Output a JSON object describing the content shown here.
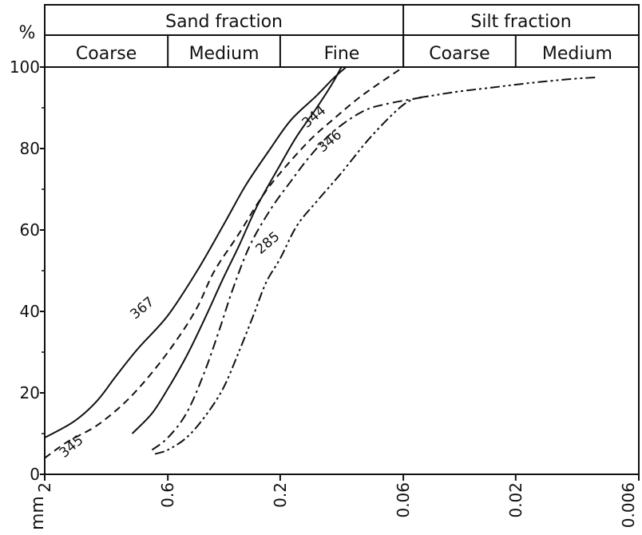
{
  "chart_data": {
    "type": "line",
    "title": "",
    "ylabel": "%",
    "xlabel_unit": "mm",
    "x_scale": "log",
    "xlim": [
      2,
      0.006
    ],
    "ylim": [
      0,
      100
    ],
    "y_ticks": [
      "0",
      "20",
      "40",
      "60",
      "80",
      "100"
    ],
    "y_tick_values": [
      0,
      20,
      40,
      60,
      80,
      100
    ],
    "x_ticks": [
      "2",
      "0.6",
      "0.2",
      "0.06",
      "0.02",
      "0.006"
    ],
    "x_tick_values": [
      2,
      0.6,
      0.2,
      0.06,
      0.02,
      0.006
    ],
    "grid": false,
    "header": {
      "groups": [
        {
          "label": "Sand fraction",
          "from": 2,
          "to": 0.06
        },
        {
          "label": "Silt fraction",
          "from": 0.06,
          "to": 0.006
        }
      ],
      "subgroups": [
        {
          "label": "Coarse",
          "from": 2,
          "to": 0.6
        },
        {
          "label": "Medium",
          "from": 0.6,
          "to": 0.2
        },
        {
          "label": "Fine",
          "from": 0.2,
          "to": 0.06
        },
        {
          "label": "Coarse",
          "from": 0.06,
          "to": 0.02
        },
        {
          "label": "Medium",
          "from": 0.02,
          "to": 0.006
        }
      ]
    },
    "series": [
      {
        "name": "367",
        "style": "solid",
        "label_at": {
          "x": 0.75,
          "y": 40
        },
        "points": [
          [
            2,
            9
          ],
          [
            1.5,
            13
          ],
          [
            1.2,
            18
          ],
          [
            1.0,
            24
          ],
          [
            0.8,
            31
          ],
          [
            0.6,
            39
          ],
          [
            0.45,
            50
          ],
          [
            0.35,
            61
          ],
          [
            0.28,
            71
          ],
          [
            0.22,
            80
          ],
          [
            0.18,
            87
          ],
          [
            0.14,
            93
          ],
          [
            0.12,
            97
          ],
          [
            0.105,
            100
          ]
        ]
      },
      {
        "name": "344",
        "style": "solid",
        "label_at": {
          "x": 0.14,
          "y": 87
        },
        "points": [
          [
            0.85,
            10
          ],
          [
            0.7,
            15
          ],
          [
            0.6,
            21
          ],
          [
            0.5,
            29
          ],
          [
            0.42,
            38
          ],
          [
            0.35,
            48
          ],
          [
            0.3,
            56
          ],
          [
            0.25,
            66
          ],
          [
            0.2,
            76
          ],
          [
            0.17,
            83
          ],
          [
            0.14,
            90
          ],
          [
            0.12,
            96
          ],
          [
            0.11,
            100
          ]
        ]
      },
      {
        "name": "345",
        "style": "dashed",
        "label_at": {
          "x": 1.5,
          "y": 6
        },
        "points": [
          [
            2,
            4
          ],
          [
            1.6,
            8
          ],
          [
            1.2,
            12
          ],
          [
            0.9,
            18
          ],
          [
            0.7,
            25
          ],
          [
            0.55,
            33
          ],
          [
            0.45,
            41
          ],
          [
            0.38,
            50
          ],
          [
            0.3,
            59
          ],
          [
            0.24,
            68
          ],
          [
            0.2,
            74
          ],
          [
            0.15,
            82
          ],
          [
            0.12,
            87
          ],
          [
            0.09,
            93
          ],
          [
            0.06,
            100
          ]
        ]
      },
      {
        "name": "346",
        "style": "dashdot",
        "label_at": {
          "x": 0.12,
          "y": 81
        },
        "points": [
          [
            0.7,
            6
          ],
          [
            0.6,
            9
          ],
          [
            0.5,
            15
          ],
          [
            0.42,
            25
          ],
          [
            0.36,
            36
          ],
          [
            0.32,
            45
          ],
          [
            0.27,
            56
          ],
          [
            0.22,
            65
          ],
          [
            0.18,
            72
          ],
          [
            0.15,
            78
          ],
          [
            0.12,
            84
          ],
          [
            0.09,
            89
          ],
          [
            0.07,
            91
          ],
          [
            0.045,
            93
          ]
        ]
      },
      {
        "name": "285",
        "style": "dashdotdot",
        "label_at": {
          "x": 0.22,
          "y": 56
        },
        "points": [
          [
            0.68,
            5
          ],
          [
            0.6,
            6
          ],
          [
            0.5,
            9
          ],
          [
            0.42,
            14
          ],
          [
            0.35,
            21
          ],
          [
            0.3,
            30
          ],
          [
            0.26,
            39
          ],
          [
            0.23,
            47
          ],
          [
            0.2,
            53
          ],
          [
            0.17,
            61
          ],
          [
            0.14,
            67
          ],
          [
            0.11,
            74
          ],
          [
            0.085,
            82
          ],
          [
            0.065,
            89
          ],
          [
            0.055,
            92
          ],
          [
            0.045,
            93
          ],
          [
            0.035,
            94
          ],
          [
            0.025,
            95
          ],
          [
            0.018,
            96
          ],
          [
            0.012,
            97
          ],
          [
            0.009,
            97.5
          ]
        ]
      }
    ]
  }
}
